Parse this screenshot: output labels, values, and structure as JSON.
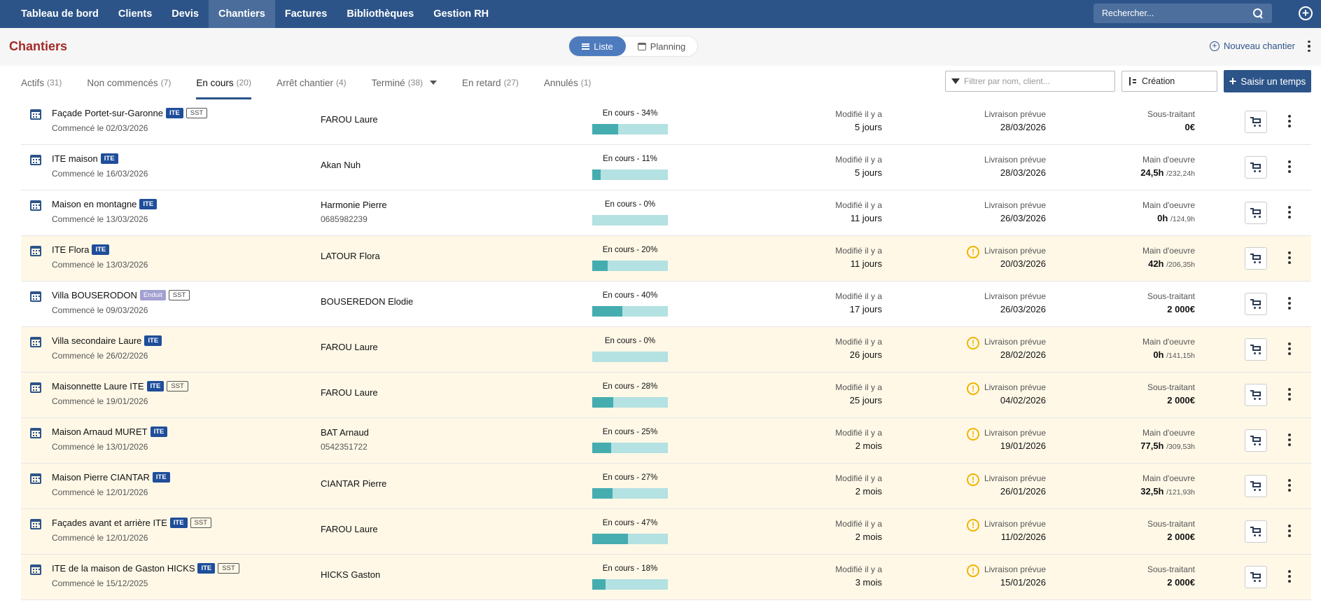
{
  "nav": {
    "items": [
      "Tableau de bord",
      "Clients",
      "Devis",
      "Chantiers",
      "Factures",
      "Bibliothèques",
      "Gestion RH"
    ],
    "active": "Chantiers",
    "search_placeholder": "Rechercher..."
  },
  "header": {
    "title": "Chantiers",
    "view_list": "Liste",
    "view_planning": "Planning",
    "new_button": "Nouveau chantier"
  },
  "tabs": [
    {
      "label": "Actifs",
      "count": "(31)"
    },
    {
      "label": "Non commencés",
      "count": "(7)"
    },
    {
      "label": "En cours",
      "count": "(20)"
    },
    {
      "label": "Arrêt chantier",
      "count": "(4)"
    },
    {
      "label": "Terminé",
      "count": "(38)"
    },
    {
      "label": "En retard",
      "count": "(27)"
    },
    {
      "label": "Annulés",
      "count": "(1)"
    }
  ],
  "toolbar": {
    "filter_placeholder": "Filtrer par nom, client...",
    "sort_label": "Création",
    "saisir_label": "Saisir un temps"
  },
  "rows": [
    {
      "title": "Façade Portet-sur-Garonne",
      "badges": [
        "ITE",
        "SST"
      ],
      "started": "Commencé le 02/03/2026",
      "client": "FAROU Laure",
      "phone": "",
      "status": "En cours - 34%",
      "progress": 34,
      "mod_label": "Modifié il y a",
      "mod_value": "5 jours",
      "liv_label": "Livraison prévue",
      "liv_value": "28/03/2026",
      "late": false,
      "right_label": "Sous-traitant",
      "right_value": "0€",
      "right_sub": ""
    },
    {
      "title": "ITE maison",
      "badges": [
        "ITE"
      ],
      "started": "Commencé le 16/03/2026",
      "client": "Akan Nuh",
      "phone": "",
      "status": "En cours - 11%",
      "progress": 11,
      "mod_label": "Modifié il y a",
      "mod_value": "5 jours",
      "liv_label": "Livraison prévue",
      "liv_value": "28/03/2026",
      "late": false,
      "right_label": "Main d'oeuvre",
      "right_value": "24,5h",
      "right_sub": "/232,24h"
    },
    {
      "title": "Maison en montagne",
      "badges": [
        "ITE"
      ],
      "started": "Commencé le 13/03/2026",
      "client": "Harmonie Pierre",
      "phone": "0685982239",
      "status": "En cours - 0%",
      "progress": 0,
      "mod_label": "Modifié il y a",
      "mod_value": "11 jours",
      "liv_label": "Livraison prévue",
      "liv_value": "26/03/2026",
      "late": false,
      "right_label": "Main d'oeuvre",
      "right_value": "0h",
      "right_sub": "/124,9h"
    },
    {
      "title": "ITE Flora",
      "badges": [
        "ITE"
      ],
      "started": "Commencé le 13/03/2026",
      "client": "LATOUR Flora",
      "phone": "",
      "status": "En cours - 20%",
      "progress": 20,
      "mod_label": "Modifié il y a",
      "mod_value": "11 jours",
      "liv_label": "Livraison prévue",
      "liv_value": "20/03/2026",
      "late": true,
      "right_label": "Main d'oeuvre",
      "right_value": "42h",
      "right_sub": "/206,35h"
    },
    {
      "title": "Villa BOUSERODON",
      "badges": [
        "Enduit",
        "SST"
      ],
      "started": "Commencé le 09/03/2026",
      "client": "BOUSEREDON Elodie",
      "phone": "",
      "status": "En cours - 40%",
      "progress": 40,
      "mod_label": "Modifié il y a",
      "mod_value": "17 jours",
      "liv_label": "Livraison prévue",
      "liv_value": "26/03/2026",
      "late": false,
      "right_label": "Sous-traitant",
      "right_value": "2 000€",
      "right_sub": ""
    },
    {
      "title": "Villa secondaire Laure",
      "badges": [
        "ITE"
      ],
      "started": "Commencé le 26/02/2026",
      "client": "FAROU Laure",
      "phone": "",
      "status": "En cours - 0%",
      "progress": 0,
      "mod_label": "Modifié il y a",
      "mod_value": "26 jours",
      "liv_label": "Livraison prévue",
      "liv_value": "28/02/2026",
      "late": true,
      "right_label": "Main d'oeuvre",
      "right_value": "0h",
      "right_sub": "/141,15h"
    },
    {
      "title": "Maisonnette Laure ITE",
      "badges": [
        "ITE",
        "SST"
      ],
      "started": "Commencé le 19/01/2026",
      "client": "FAROU Laure",
      "phone": "",
      "status": "En cours - 28%",
      "progress": 28,
      "mod_label": "Modifié il y a",
      "mod_value": "25 jours",
      "liv_label": "Livraison prévue",
      "liv_value": "04/02/2026",
      "late": true,
      "right_label": "Sous-traitant",
      "right_value": "2 000€",
      "right_sub": ""
    },
    {
      "title": "Maison Arnaud MURET",
      "badges": [
        "ITE"
      ],
      "started": "Commencé le 13/01/2026",
      "client": "BAT Arnaud",
      "phone": "0542351722",
      "status": "En cours - 25%",
      "progress": 25,
      "mod_label": "Modifié il y a",
      "mod_value": "2 mois",
      "liv_label": "Livraison prévue",
      "liv_value": "19/01/2026",
      "late": true,
      "right_label": "Main d'oeuvre",
      "right_value": "77,5h",
      "right_sub": "/309,53h"
    },
    {
      "title": "Maison Pierre CIANTAR",
      "badges": [
        "ITE"
      ],
      "started": "Commencé le 12/01/2026",
      "client": "CIANTAR Pierre",
      "phone": "",
      "status": "En cours - 27%",
      "progress": 27,
      "mod_label": "Modifié il y a",
      "mod_value": "2 mois",
      "liv_label": "Livraison prévue",
      "liv_value": "26/01/2026",
      "late": true,
      "right_label": "Main d'oeuvre",
      "right_value": "32,5h",
      "right_sub": "/121,93h"
    },
    {
      "title": "Façades avant et arrière ITE",
      "badges": [
        "ITE",
        "SST"
      ],
      "started": "Commencé le 12/01/2026",
      "client": "FAROU Laure",
      "phone": "",
      "status": "En cours - 47%",
      "progress": 47,
      "mod_label": "Modifié il y a",
      "mod_value": "2 mois",
      "liv_label": "Livraison prévue",
      "liv_value": "11/02/2026",
      "late": true,
      "right_label": "Sous-traitant",
      "right_value": "2 000€",
      "right_sub": ""
    },
    {
      "title": "ITE de la maison de Gaston HICKS",
      "badges": [
        "ITE",
        "SST"
      ],
      "started": "Commencé le 15/12/2025",
      "client": "HICKS Gaston",
      "phone": "",
      "status": "En cours - 18%",
      "progress": 18,
      "mod_label": "Modifié il y a",
      "mod_value": "3 mois",
      "liv_label": "Livraison prévue",
      "liv_value": "15/01/2026",
      "late": true,
      "right_label": "Sous-traitant",
      "right_value": "2 000€",
      "right_sub": ""
    }
  ]
}
